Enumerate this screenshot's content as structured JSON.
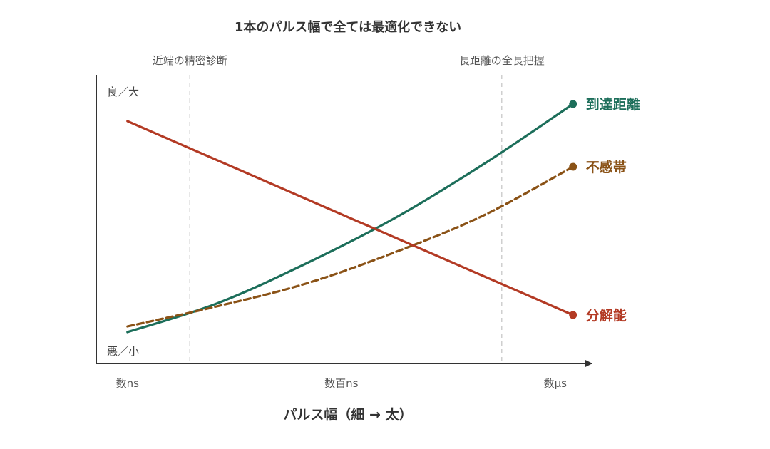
{
  "chart_data": {
    "type": "line",
    "title": "1本のパルス幅で全ては最適化できない",
    "xlabel": "パルス幅（細 → 太）",
    "x_ticks": [
      {
        "x": 0,
        "label": "数ns"
      },
      {
        "x": 0.48,
        "label": "数百ns"
      },
      {
        "x": 0.96,
        "label": "数μs"
      }
    ],
    "y_ends": {
      "top": "良／大",
      "bottom": "悪／小"
    },
    "xlim": [
      -0.07,
      1.05
    ],
    "ylim": [
      0,
      1
    ],
    "grid": false,
    "reference_lines": [
      {
        "x": 0.14,
        "label": "近端の精密診断"
      },
      {
        "x": 0.84,
        "label": "長距離の全長把握"
      }
    ],
    "series": [
      {
        "name": "到達距離",
        "color": "#1c6e5a",
        "style": "solid",
        "x": [
          0,
          0.2,
          0.4,
          0.6,
          0.8,
          1.0
        ],
        "y": [
          0.11,
          0.21,
          0.35,
          0.51,
          0.7,
          0.91
        ]
      },
      {
        "name": "不感帯",
        "color": "#8a5216",
        "style": "dashed",
        "x": [
          0,
          0.2,
          0.4,
          0.6,
          0.8,
          1.0
        ],
        "y": [
          0.13,
          0.2,
          0.28,
          0.39,
          0.52,
          0.69
        ]
      },
      {
        "name": "分解能",
        "color": "#b33a24",
        "style": "solid",
        "x": [
          0,
          1.0
        ],
        "y": [
          0.85,
          0.17
        ]
      }
    ]
  }
}
